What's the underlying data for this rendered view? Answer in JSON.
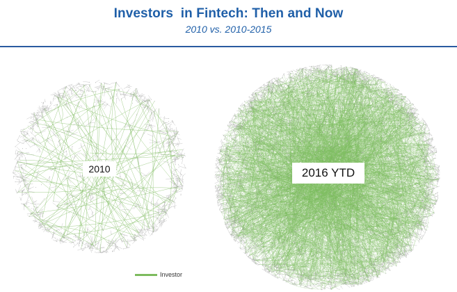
{
  "header": {
    "title": "Investors  in Fintech: Then and Now",
    "subtitle": "2010 vs. 2010-2015"
  },
  "networks": [
    {
      "id": "2010",
      "label": "2010"
    },
    {
      "id": "2016",
      "label": "2016 YTD"
    }
  ],
  "legend": {
    "label": "Investor",
    "color": "#7dbb5e"
  },
  "colors": {
    "title": "#1f5fa8",
    "rule": "#2a5aa0",
    "node_edge": "#c8c8c8",
    "investor_edge": "#7dbb5e"
  }
}
